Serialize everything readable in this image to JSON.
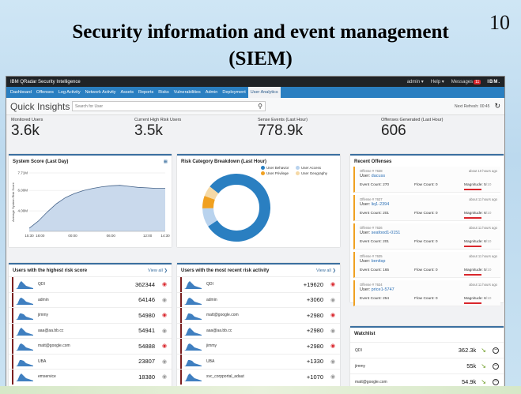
{
  "slide": {
    "title_line1": "Security information and event management",
    "title_line2": "(SIEM)",
    "page_number": "10"
  },
  "topbar": {
    "brand": "IBM QRadar Security Intelligence",
    "admin": "admin ▾",
    "help": "Help ▾",
    "messages": "Messages",
    "messages_count": "11",
    "logo": "IBM."
  },
  "nav": {
    "tabs": [
      "Dashboard",
      "Offenses",
      "Log Activity",
      "Network Activity",
      "Assets",
      "Reports",
      "Risks",
      "Vulnerabilities",
      "Admin",
      "Deployment",
      "User Analytics"
    ],
    "active_index": 10
  },
  "quick": {
    "title": "Quick Insights",
    "search_placeholder": "Search for User",
    "search_icon": "search-icon",
    "next_refresh": "Next Refresh: 00:45",
    "refresh_icon": "refresh-icon"
  },
  "metrics": [
    {
      "label": "Monitored Users",
      "value": "3.6k"
    },
    {
      "label": "Current High Risk Users",
      "value": "3.5k"
    },
    {
      "label": "Sense Events (Last Hour)",
      "value": "778.9k"
    },
    {
      "label": "Offenses Generated (Last Hour)",
      "value": "606"
    }
  ],
  "system_score": {
    "title": "System Score (Last Day)",
    "chart_data": {
      "type": "area",
      "title": "System Score (Last Day)",
      "ylabel": "Average System Risk Score",
      "xlabel": "",
      "x_ticks": [
        "15:30",
        "18:00",
        "00:00",
        "06:00",
        "12:00",
        "14:30"
      ],
      "y_ticks": [
        "4.00M",
        "6.00M",
        "7.71M"
      ],
      "ylim": [
        2000000,
        7710000
      ],
      "x": [
        0,
        1,
        2,
        3,
        4,
        5,
        6,
        7,
        8,
        9,
        10,
        11,
        12,
        13,
        14,
        15
      ],
      "values": [
        2300000,
        3000000,
        3900000,
        4700000,
        5300000,
        5700000,
        6000000,
        6200000,
        6350000,
        6450000,
        6500000,
        6400000,
        6300000,
        6250000,
        6200000,
        6200000
      ],
      "grid": true,
      "color": "#c9d9ec"
    }
  },
  "risk_category": {
    "title": "Risk Category Breakdown (Last Hour)",
    "chart_data": {
      "type": "pie",
      "title": "Risk Category Breakdown (Last Hour)",
      "donut": true,
      "series": [
        {
          "name": "User Behavior",
          "value": 80,
          "color": "#2a7fc1"
        },
        {
          "name": "User Access",
          "value": 9,
          "color": "#b9d3ee"
        },
        {
          "name": "User Privilege",
          "value": 6,
          "color": "#f0a020"
        },
        {
          "name": "User Geography",
          "value": 5,
          "color": "#f5d9a6"
        }
      ],
      "legend": "top-right"
    }
  },
  "recent_offenses": {
    "title": "Recent Offenses",
    "items": [
      {
        "id": "Offense # 7638",
        "ago": "about 10 hours ago",
        "user": "dacuss",
        "events": "Event Count: 270",
        "flows": "Flow Count: 0",
        "magnitude": "Magnitude: 5",
        "mag_max": "/10"
      },
      {
        "id": "Offense # 7637",
        "ago": "about 11 hours ago",
        "user": "liq1-2394",
        "events": "Event Count: 201",
        "flows": "Flow Count: 0",
        "magnitude": "Magnitude: 6",
        "mag_max": "/10"
      },
      {
        "id": "Offense # 7636",
        "ago": "about 11 hours ago",
        "user": "seafood1-0151",
        "events": "Event Count: 201",
        "flows": "Flow Count: 0",
        "magnitude": "Magnitude: 6",
        "mag_max": "/10"
      },
      {
        "id": "Offense # 7635",
        "ago": "about 11 hours ago",
        "user": "benitsp",
        "events": "Event Count: 165",
        "flows": "Flow Count: 0",
        "magnitude": "Magnitude: 5",
        "mag_max": "/10"
      },
      {
        "id": "Offense # 7634",
        "ago": "about 11 hours ago",
        "user": "price1-5747",
        "events": "Event Count: 254",
        "flows": "Flow Count: 0",
        "magnitude": "Magnitude: 6",
        "mag_max": "/10"
      }
    ],
    "user_prefix": "User: "
  },
  "highest_risk": {
    "title": "Users with the highest risk score",
    "view_all": "View all ❯",
    "rows": [
      {
        "name": "QDI",
        "value": "362344",
        "alert": true
      },
      {
        "name": "admin",
        "value": "64146",
        "alert": false
      },
      {
        "name": "jimmy",
        "value": "54980",
        "alert": true
      },
      {
        "name": "aaa@aa.bb.cc",
        "value": "54941",
        "alert": false
      },
      {
        "name": "matt@google.com",
        "value": "54888",
        "alert": true
      },
      {
        "name": "UBA",
        "value": "23807",
        "alert": false
      },
      {
        "name": "emservice",
        "value": "18380",
        "alert": false
      }
    ]
  },
  "recent_activity": {
    "title": "Users with the most recent risk activity",
    "view_all": "View all ❯",
    "rows": [
      {
        "name": "QDI",
        "value": "+19620",
        "alert": true
      },
      {
        "name": "admin",
        "value": "+3060",
        "alert": false
      },
      {
        "name": "matt@google.com",
        "value": "+2980",
        "alert": true
      },
      {
        "name": "aaa@aa.bb.cc",
        "value": "+2980",
        "alert": false
      },
      {
        "name": "jimmy",
        "value": "+2980",
        "alert": true
      },
      {
        "name": "UBA",
        "value": "+1330",
        "alert": false
      },
      {
        "name": "svc_corpportal_adaut",
        "value": "+1070",
        "alert": false
      }
    ]
  },
  "watchlist": {
    "title": "Watchlist",
    "rows": [
      {
        "name": "QDI",
        "value": "362.3k"
      },
      {
        "name": "jimmy",
        "value": "55k"
      },
      {
        "name": "matt@google.com",
        "value": "54.9k"
      }
    ]
  },
  "icons": {
    "eye": "eye-icon",
    "trend": "arrow-down-right-icon",
    "remove": "minus-circle-icon",
    "menu": "panel-menu-icon"
  }
}
